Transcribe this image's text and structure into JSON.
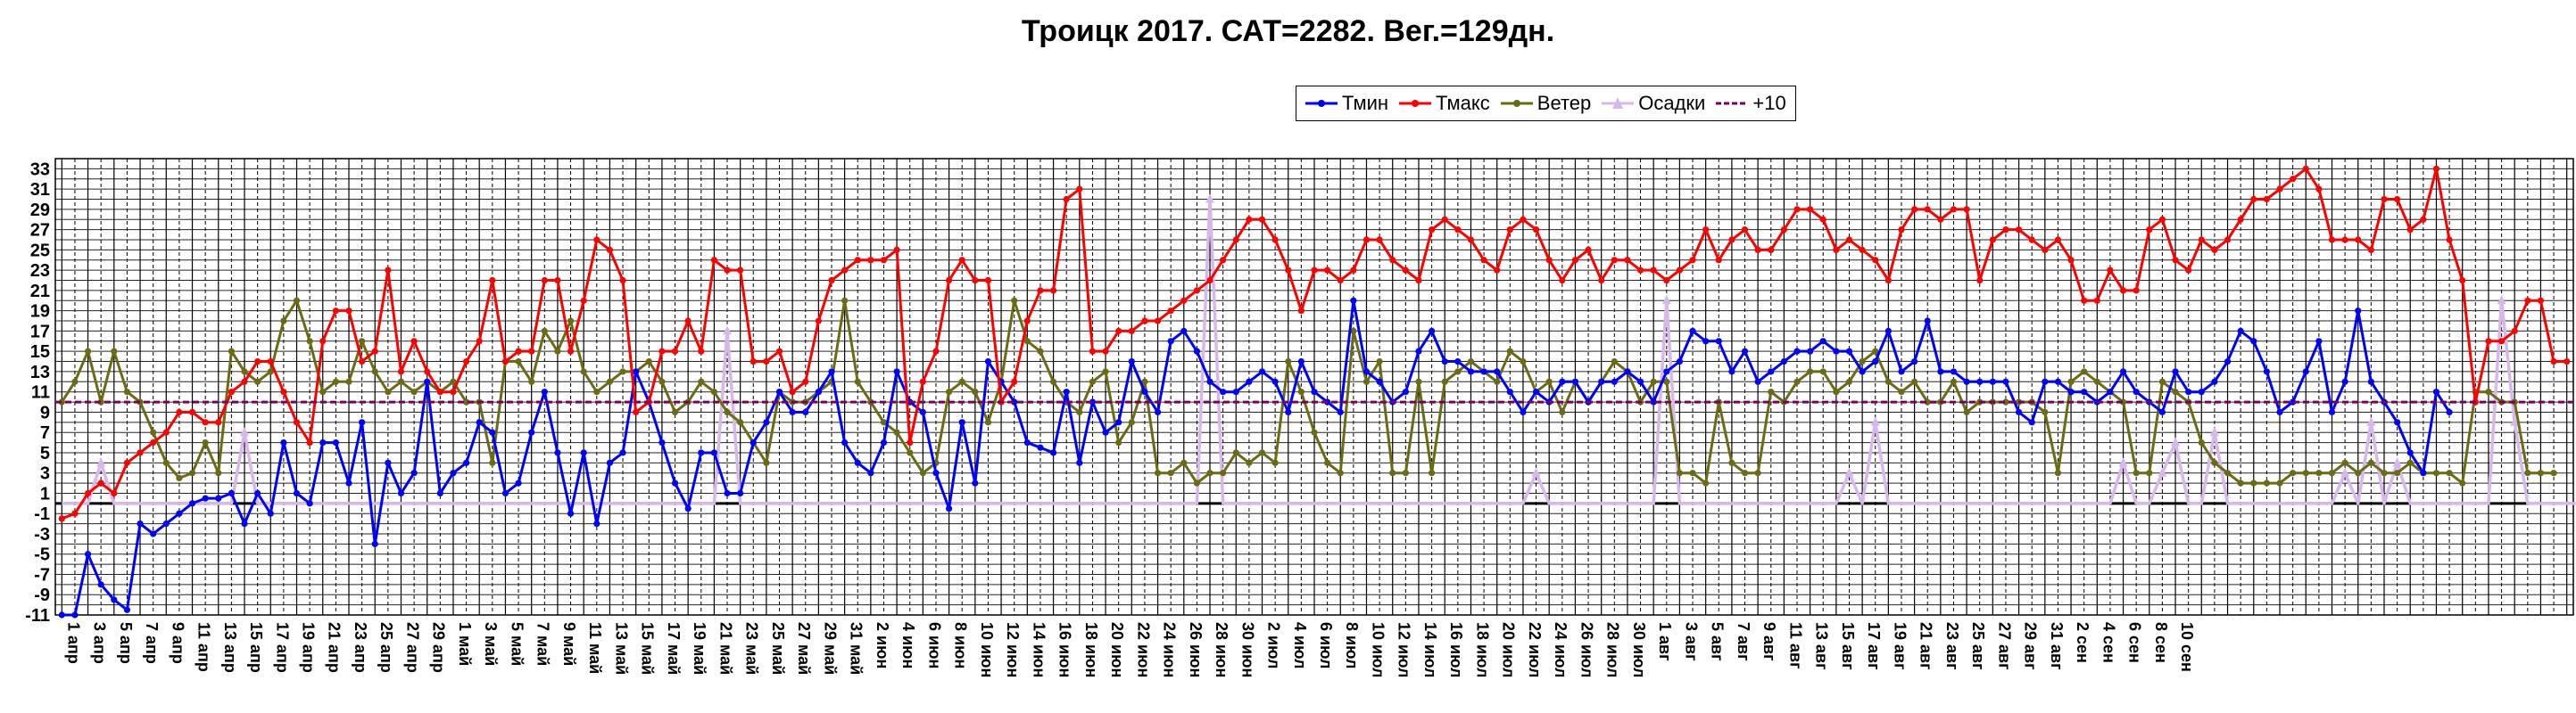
{
  "chart_data": {
    "type": "line",
    "title": "Троицк 2017. САТ=2282. Вег.=129дн.",
    "xlabel": "",
    "ylabel": "",
    "ylim": [
      -11,
      34
    ],
    "y_ticks": [
      33,
      31,
      29,
      27,
      25,
      23,
      21,
      19,
      17,
      15,
      13,
      11,
      9,
      7,
      5,
      3,
      1,
      -1,
      -3,
      -5,
      -7,
      -9,
      -11
    ],
    "grid": true,
    "legend_position": "top-center",
    "start_date": "2017-04-01",
    "x_tick_labels": [
      "1 апр",
      "3 апр",
      "5 апр",
      "7 апр",
      "9 апр",
      "11 апр",
      "13 апр",
      "15 апр",
      "17 апр",
      "19 апр",
      "21 апр",
      "23 апр",
      "25 апр",
      "27 апр",
      "29 апр",
      "1 май",
      "3 май",
      "5 май",
      "7 май",
      "9 май",
      "11 май",
      "13 май",
      "15 май",
      "17 май",
      "19 май",
      "21 май",
      "23 май",
      "25 май",
      "27 май",
      "29 май",
      "31 май",
      "2 июн",
      "4 июн",
      "6 июн",
      "8 июн",
      "10 июн",
      "12 июн",
      "14 июн",
      "16 июн",
      "18 июн",
      "20 июн",
      "22 июн",
      "24 июн",
      "26 июн",
      "28 июн",
      "30 июн",
      "2 июл",
      "4 июл",
      "6 июл",
      "8 июл",
      "10 июл",
      "12 июл",
      "14 июл",
      "16 июл",
      "18 июл",
      "20 июл",
      "22 июл",
      "24 июл",
      "26 июл",
      "28 июл",
      "30 июл",
      "1 авг",
      "3 авг",
      "5 авг",
      "7 авг",
      "9 авг",
      "11 авг",
      "13 авг",
      "15 авг",
      "17 авг",
      "19 авг",
      "21 авг",
      "23 авг",
      "25 авг",
      "27 авг",
      "29 авг",
      "31 авг",
      "2 сен",
      "4 сен",
      "6 сен",
      "8 сен",
      "10 сен"
    ],
    "series": [
      {
        "name": "Тмин",
        "color": "#0000ff",
        "marker": "circle",
        "values": [
          -14,
          -12,
          -5,
          -8,
          -9.5,
          -10.5,
          -2,
          -3,
          -2,
          -1,
          0,
          0.5,
          0.5,
          1,
          -2,
          1,
          -1,
          6,
          1,
          0,
          6,
          6,
          2,
          8,
          -4,
          4,
          1,
          3,
          12,
          1,
          3,
          4,
          8,
          7,
          1,
          2,
          7,
          11,
          5,
          -1,
          5,
          -2,
          4,
          5,
          13,
          10,
          6,
          2,
          -0.5,
          5,
          5,
          1,
          1,
          6,
          8,
          11,
          9,
          9,
          11,
          13,
          6,
          4,
          3,
          6,
          13,
          10,
          9,
          3,
          -0.5,
          8,
          2,
          14,
          12,
          10,
          6,
          5.5,
          5,
          11,
          4,
          10,
          7,
          8,
          14,
          11,
          9,
          16,
          17,
          15,
          12,
          11,
          11,
          12,
          13,
          12,
          9,
          14,
          11,
          10,
          9,
          20,
          13,
          12,
          10,
          11,
          15,
          17,
          14,
          14,
          13,
          13,
          13,
          11,
          9,
          11,
          10,
          12,
          12,
          10,
          12,
          12,
          13,
          12,
          10,
          13,
          14,
          17,
          16,
          16,
          13,
          15,
          12,
          13,
          14,
          15,
          15,
          16,
          15,
          15,
          13,
          14,
          17,
          13,
          14,
          18,
          13,
          13,
          12,
          12,
          12,
          12,
          9,
          8,
          12,
          12,
          11,
          11,
          10,
          11,
          13,
          11,
          10,
          9,
          13,
          11,
          11,
          12,
          14,
          17,
          16,
          13,
          9,
          10,
          13,
          16,
          9,
          12,
          19,
          12,
          10,
          8,
          5,
          3,
          11,
          9
        ]
      },
      {
        "name": "Тмакс",
        "color": "#ff0000",
        "marker": "circle",
        "values": [
          -1.5,
          -1,
          1,
          2,
          1,
          4,
          5,
          6,
          7,
          9,
          9,
          8,
          8,
          11,
          12,
          14,
          14,
          11,
          8,
          6,
          16,
          19,
          19,
          14,
          15,
          23,
          13,
          16,
          13,
          11,
          11,
          14,
          16,
          22,
          14,
          15,
          15,
          22,
          22,
          15,
          20,
          26,
          25,
          22,
          9,
          10,
          15,
          15,
          18,
          15,
          24,
          23,
          23,
          14,
          14,
          15,
          11,
          12,
          18,
          22,
          23,
          24,
          24,
          24,
          25,
          6,
          12,
          15,
          22,
          24,
          22,
          22,
          10,
          12,
          18,
          21,
          21,
          30,
          31,
          15,
          15,
          17,
          17,
          18,
          18,
          19,
          20,
          21,
          22,
          24,
          26,
          28,
          28,
          26,
          23,
          19,
          23,
          23,
          22,
          23,
          26,
          26,
          24,
          23,
          22,
          27,
          28,
          27,
          26,
          24,
          23,
          27,
          28,
          27,
          24,
          22,
          24,
          25,
          22,
          24,
          24,
          23,
          23,
          22,
          23,
          24,
          27,
          24,
          26,
          27,
          25,
          25,
          27,
          29,
          29,
          28,
          25,
          26,
          25,
          24,
          22,
          27,
          29,
          29,
          28,
          29,
          29,
          22,
          26,
          27,
          27,
          26,
          25,
          26,
          24,
          20,
          20,
          23,
          21,
          21,
          27,
          28,
          24,
          23,
          26,
          25,
          26,
          28,
          30,
          30,
          31,
          32,
          33,
          31,
          26,
          26,
          26,
          25,
          30,
          30,
          27,
          28,
          33,
          26,
          22,
          10,
          16,
          16,
          17,
          20,
          20,
          14,
          14
        ]
      },
      {
        "name": "Ветер",
        "color": "#6b6b14",
        "marker": "circle",
        "values": [
          10,
          12,
          15,
          10,
          15,
          11,
          10,
          7,
          4,
          2.5,
          3,
          6,
          3,
          15,
          13,
          12,
          13,
          18,
          20,
          16,
          11,
          12,
          12,
          16,
          13,
          11,
          12,
          11,
          12,
          11,
          12,
          10,
          10,
          4,
          14,
          14,
          12,
          17,
          15,
          18,
          13,
          11,
          12,
          13,
          13,
          14,
          12,
          9,
          10,
          12,
          11,
          9,
          8,
          6,
          4,
          11,
          10,
          10,
          11,
          12,
          20,
          12,
          10,
          8,
          7,
          5,
          3,
          4,
          11,
          12,
          11,
          8,
          12,
          20,
          16,
          15,
          12,
          10,
          9,
          12,
          13,
          6,
          8,
          12,
          3,
          3,
          4,
          2,
          3,
          3,
          5,
          4,
          5,
          4,
          14,
          11,
          7,
          4,
          3,
          17,
          12,
          14,
          3,
          3,
          12,
          3,
          12,
          13,
          14,
          13,
          12,
          15,
          14,
          11,
          12,
          9,
          12,
          10,
          12,
          14,
          13,
          10,
          12,
          12,
          3,
          3,
          2,
          10,
          4,
          3,
          3,
          11,
          10,
          12,
          13,
          13,
          11,
          12,
          14,
          15,
          12,
          11,
          12,
          10,
          10,
          12,
          9,
          10,
          10,
          10,
          10,
          10,
          9,
          3,
          12,
          13,
          12,
          11,
          10,
          3,
          3,
          12,
          11,
          10,
          6,
          4,
          3,
          2,
          2,
          2,
          2,
          3,
          3,
          3,
          3,
          4,
          3,
          4,
          3,
          3,
          4,
          3,
          3,
          3,
          2,
          11,
          11,
          10,
          10,
          3,
          3,
          3
        ]
      },
      {
        "name": "Осадки",
        "color": "#d8b8ec",
        "marker": "triangle",
        "values": [
          0,
          0,
          0,
          4,
          0,
          0,
          0,
          0,
          0,
          0,
          0,
          0,
          0,
          0,
          7,
          0,
          0,
          0,
          0,
          0,
          0,
          0,
          0,
          0,
          0,
          0,
          0,
          0,
          0,
          0,
          0,
          0,
          0,
          0,
          0,
          0,
          0,
          0,
          0,
          0,
          0,
          0,
          0,
          0,
          0,
          0,
          0,
          0,
          0,
          0,
          0,
          17,
          0,
          0,
          0,
          0,
          0,
          0,
          0,
          0,
          0,
          0,
          0,
          0,
          0,
          0,
          0,
          0,
          0,
          0,
          0,
          0,
          0,
          0,
          0,
          0,
          0,
          0,
          0,
          0,
          0,
          0,
          0,
          0,
          0,
          0,
          0,
          0,
          30,
          0,
          0,
          0,
          0,
          0,
          0,
          0,
          0,
          0,
          0,
          0,
          0,
          0,
          0,
          0,
          0,
          0,
          0,
          0,
          0,
          0,
          0,
          0,
          0,
          3,
          0,
          0,
          0,
          0,
          0,
          0,
          0,
          0,
          0,
          20,
          0,
          0,
          0,
          0,
          0,
          0,
          0,
          0,
          0,
          0,
          0,
          0,
          0,
          3,
          0,
          8,
          0,
          0,
          0,
          0,
          0,
          0,
          0,
          0,
          0,
          0,
          0,
          0,
          0,
          0,
          0,
          0,
          0,
          0,
          4,
          0,
          0,
          3,
          6,
          0,
          0,
          7,
          0,
          0,
          0,
          0,
          0,
          0,
          0,
          0,
          0,
          3,
          0,
          8,
          0,
          4,
          0,
          0,
          0,
          0,
          0,
          0,
          0,
          20,
          8,
          0,
          0,
          0,
          0,
          0,
          0,
          0,
          0,
          0,
          0,
          0,
          0,
          0,
          3,
          0,
          0,
          0,
          0,
          0,
          0,
          0,
          0,
          0,
          0,
          0,
          0,
          0,
          0,
          0,
          0,
          0,
          0,
          0,
          0,
          0,
          0,
          0,
          0,
          0,
          0,
          0,
          0,
          5
        ]
      },
      {
        "name": "+10",
        "color": "#7a0060",
        "marker": "none",
        "constant": 10
      }
    ]
  }
}
